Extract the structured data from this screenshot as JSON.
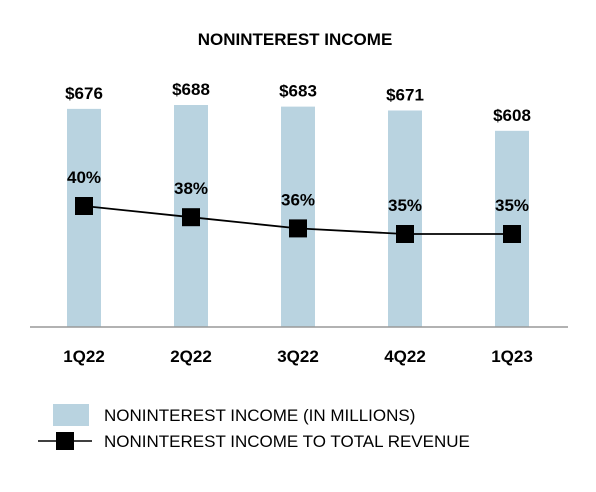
{
  "chart_data": {
    "type": "bar",
    "title": "NONINTEREST INCOME",
    "categories": [
      "1Q22",
      "2Q22",
      "3Q22",
      "4Q22",
      "1Q23"
    ],
    "series": [
      {
        "name": "NONINTEREST INCOME (IN MILLIONS)",
        "type": "bar",
        "values": [
          676,
          688,
          683,
          671,
          608
        ],
        "labels": [
          "$676",
          "$688",
          "$683",
          "$671",
          "$608"
        ],
        "color": "#b9d3e0"
      },
      {
        "name": "NONINTEREST INCOME TO TOTAL REVENUE",
        "type": "line",
        "values": [
          40,
          38,
          36,
          35,
          35
        ],
        "labels": [
          "40%",
          "38%",
          "36%",
          "35%",
          "35%"
        ],
        "unit": "%",
        "color": "#000000"
      }
    ],
    "legend_position": "bottom",
    "grid": false
  }
}
